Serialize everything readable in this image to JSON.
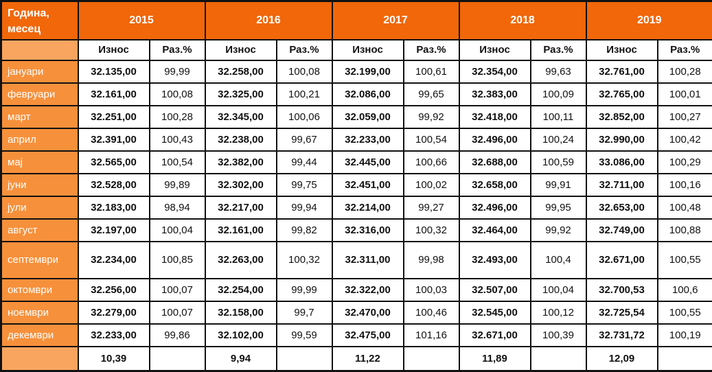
{
  "colors": {
    "header_orange": "#F1670A",
    "month_orange": "#F7903B",
    "light_orange": "#F9A55F",
    "border_black": "#111111",
    "header_text": "#ffffff",
    "data_text": "#111111"
  },
  "chart_data": {
    "type": "table",
    "corner_header": "Година, месец",
    "years": [
      "2015",
      "2016",
      "2017",
      "2018",
      "2019"
    ],
    "sub_columns": [
      "Износ",
      "Раз.%"
    ],
    "months": [
      "јануари",
      "февруари",
      "март",
      "април",
      "мај",
      "јуни",
      "јули",
      "август",
      "септември",
      "октомври",
      "ноември",
      "декември"
    ],
    "series": [
      {
        "year": "2015",
        "iznos": [
          "32.135,00",
          "32.161,00",
          "32.251,00",
          "32.391,00",
          "32.565,00",
          "32.528,00",
          "32.183,00",
          "32.197,00",
          "32.234,00",
          "32.256,00",
          "32.279,00",
          "32.233,00"
        ],
        "raz": [
          "99,99",
          "100,08",
          "100,28",
          "100,43",
          "100,54",
          "99,89",
          "98,94",
          "100,04",
          "100,85",
          "100,07",
          "100,07",
          "99,86"
        ],
        "footer": "10,39"
      },
      {
        "year": "2016",
        "iznos": [
          "32.258,00",
          "32.325,00",
          "32.345,00",
          "32.238,00",
          "32.382,00",
          "32.302,00",
          "32.217,00",
          "32.161,00",
          "32.263,00",
          "32.254,00",
          "32.158,00",
          "32.102,00"
        ],
        "raz": [
          "100,08",
          "100,21",
          "100,06",
          "99,67",
          "99,44",
          "99,75",
          "99,94",
          "99,82",
          "100,32",
          "99,99",
          "99,7",
          "99,59"
        ],
        "footer": "9,94"
      },
      {
        "year": "2017",
        "iznos": [
          "32.199,00",
          "32.086,00",
          "32.059,00",
          "32.233,00",
          "32.445,00",
          "32.451,00",
          "32.214,00",
          "32.316,00",
          "32.311,00",
          "32.322,00",
          "32.470,00",
          "32.475,00"
        ],
        "raz": [
          "100,61",
          "99,65",
          "99,92",
          "100,54",
          "100,66",
          "100,02",
          "99,27",
          "100,32",
          "99,98",
          "100,03",
          "100,46",
          "101,16"
        ],
        "footer": "11,22"
      },
      {
        "year": "2018",
        "iznos": [
          "32.354,00",
          "32.383,00",
          "32.418,00",
          "32.496,00",
          "32.688,00",
          "32.658,00",
          "32.496,00",
          "32.464,00",
          "32.493,00",
          "32.507,00",
          "32.545,00",
          "32.671,00"
        ],
        "raz": [
          "99,63",
          "100,09",
          "100,11",
          "100,24",
          "100,59",
          "99,91",
          "99,95",
          "99,92",
          "100,4",
          "100,04",
          "100,12",
          "100,39"
        ],
        "footer": "11,89"
      },
      {
        "year": "2019",
        "iznos": [
          "32.761,00",
          "32.765,00",
          "32.852,00",
          "32.990,00",
          "33.086,00",
          "32.711,00",
          "32.653,00",
          "32.749,00",
          "32.671,00",
          "32.700,53",
          "32.725,54",
          "32.731,72"
        ],
        "raz": [
          "100,28",
          "100,01",
          "100,27",
          "100,42",
          "100,29",
          "100,16",
          "100,48",
          "100,88",
          "100,55",
          "100,6",
          "100,55",
          "100,19"
        ],
        "footer": "12,09"
      }
    ]
  }
}
